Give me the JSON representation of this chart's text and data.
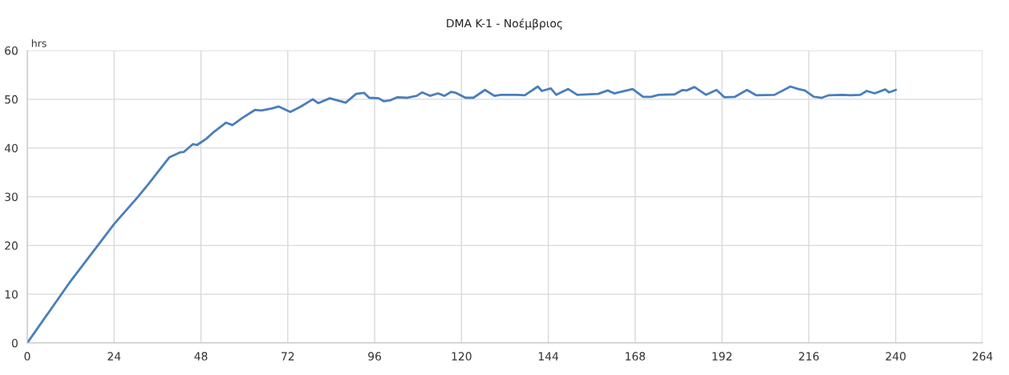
{
  "chart_data": {
    "type": "line",
    "title": "DMA K-1 - Νοέμβριος",
    "ylabel": "hrs",
    "x": [
      0,
      11.6,
      24,
      30.5,
      33.5,
      39.3,
      42.2,
      43.3,
      45.8,
      46.9,
      49.5,
      51.6,
      54.9,
      56.7,
      59.3,
      62.9,
      64.7,
      67.6,
      69.5,
      72.7,
      75.6,
      78.9,
      80.4,
      83.6,
      88,
      90.9,
      93.1,
      94.5,
      97.1,
      98.5,
      100.4,
      102.2,
      105.1,
      107.6,
      109.1,
      111.3,
      113.5,
      115.3,
      117.1,
      118.5,
      121.1,
      123.3,
      126.5,
      129.1,
      130.9,
      135.3,
      137.5,
      141.1,
      142.2,
      144.7,
      146.2,
      149.5,
      152,
      157.8,
      160.4,
      162.2,
      167.3,
      170.2,
      172.4,
      174.5,
      178.9,
      181.1,
      182.2,
      184.4,
      187.6,
      190.5,
      192.7,
      195.6,
      198.9,
      201.5,
      206.5,
      210.9,
      213.1,
      214.9,
      217.4,
      219.6,
      221.4,
      225.4,
      227.6,
      230.2,
      232,
      234.2,
      237.1,
      238.2,
      240
    ],
    "series": [
      {
        "color": "#4a7ebb",
        "values": [
          0,
          12.3,
          24.4,
          29.9,
          32.6,
          38.1,
          39.1,
          39.2,
          40.8,
          40.6,
          41.9,
          43.3,
          45.2,
          44.7,
          46.1,
          47.8,
          47.7,
          48.1,
          48.5,
          47.4,
          48.5,
          50,
          49.2,
          50.2,
          49.3,
          51.1,
          51.3,
          50.3,
          50.2,
          49.6,
          49.8,
          50.4,
          50.3,
          50.7,
          51.4,
          50.7,
          51.2,
          50.7,
          51.5,
          51.3,
          50.3,
          50.3,
          51.9,
          50.7,
          50.9,
          50.9,
          50.8,
          52.6,
          51.7,
          52.2,
          50.9,
          52.1,
          50.9,
          51.1,
          51.8,
          51.2,
          52.1,
          50.5,
          50.5,
          50.9,
          51,
          51.9,
          51.8,
          52.5,
          50.9,
          51.9,
          50.4,
          50.5,
          51.9,
          50.8,
          50.9,
          52.6,
          52.1,
          51.8,
          50.5,
          50.3,
          50.8,
          50.9,
          50.8,
          50.9,
          51.7,
          51.2,
          52,
          51.4,
          51.9
        ]
      }
    ],
    "xlim": [
      0,
      264
    ],
    "xticks": [
      0,
      24,
      48,
      72,
      96,
      120,
      144,
      168,
      192,
      216,
      240,
      264
    ],
    "ylim": [
      0,
      60
    ],
    "yticks": [
      0,
      10,
      20,
      30,
      40,
      50,
      60
    ],
    "grid": true,
    "legend": false,
    "marker": "none",
    "line_style": "solid"
  }
}
